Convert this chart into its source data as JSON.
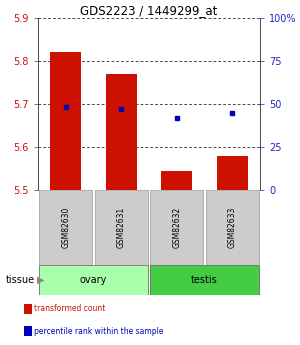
{
  "title": "GDS2223 / 1449299_at",
  "samples": [
    "GSM82630",
    "GSM82631",
    "GSM82632",
    "GSM82633"
  ],
  "tissue_groups": [
    {
      "label": "ovary",
      "n_samples": 2,
      "color": "#aaffaa"
    },
    {
      "label": "testis",
      "n_samples": 2,
      "color": "#44cc44"
    }
  ],
  "transformed_counts": [
    5.82,
    5.77,
    5.545,
    5.58
  ],
  "percentile_ranks": [
    48,
    47,
    42,
    45
  ],
  "bar_base": 5.5,
  "ylim_left": [
    5.5,
    5.9
  ],
  "ylim_right": [
    0,
    100
  ],
  "yticks_left": [
    5.5,
    5.6,
    5.7,
    5.8,
    5.9
  ],
  "yticks_right": [
    0,
    25,
    50,
    75,
    100
  ],
  "ytick_labels_right": [
    "0",
    "25",
    "50",
    "75",
    "100%"
  ],
  "bar_color": "#cc1100",
  "dot_color": "#0000bb",
  "label_color_left": "#cc1100",
  "label_color_right": "#2222cc",
  "bar_width": 0.55,
  "sample_box_color": "#cccccc",
  "tissue_label": "tissue",
  "legend_items": [
    {
      "label": "transformed count",
      "color": "#cc1100"
    },
    {
      "label": "percentile rank within the sample",
      "color": "#0000bb"
    }
  ]
}
